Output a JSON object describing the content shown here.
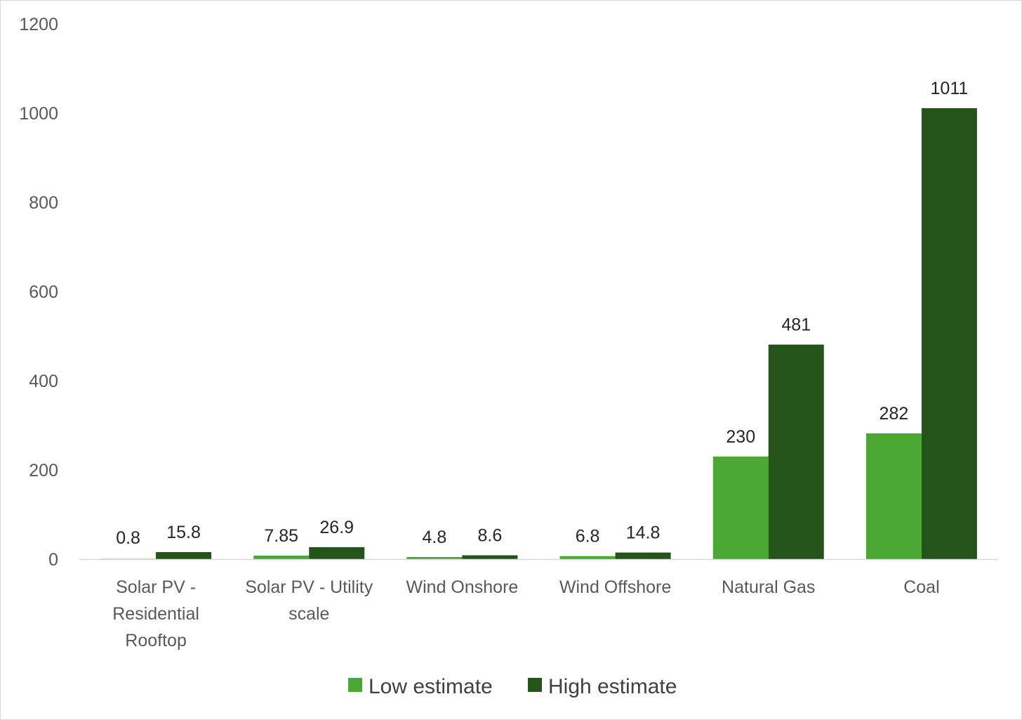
{
  "chart_data": {
    "type": "bar",
    "categories": [
      [
        "Solar PV -",
        "Residential",
        "Rooftop"
      ],
      [
        "Solar PV - Utility",
        "scale"
      ],
      [
        "Wind Onshore"
      ],
      [
        "Wind Offshore"
      ],
      [
        "Natural Gas"
      ],
      [
        "Coal"
      ]
    ],
    "series": [
      {
        "name": "Low estimate",
        "values": [
          0.8,
          7.85,
          4.8,
          6.8,
          230,
          282
        ],
        "labels": [
          "0.8",
          "7.85",
          "4.8",
          "6.8",
          "230",
          "282"
        ],
        "color": "#4aa832"
      },
      {
        "name": "High estimate",
        "values": [
          15.8,
          26.9,
          8.6,
          14.8,
          481,
          1011
        ],
        "labels": [
          "15.8",
          "26.9",
          "8.6",
          "14.8",
          "481",
          "1011"
        ],
        "color": "#245419"
      }
    ],
    "ylim": [
      0,
      1200
    ],
    "yticks": [
      "0",
      "200",
      "400",
      "600",
      "800",
      "1000",
      "1200"
    ],
    "title": "",
    "xlabel": "",
    "ylabel": "",
    "grid": false,
    "legend": "bottom",
    "colors": {
      "axis": "#d9d9d9",
      "tick_text": "#595959",
      "label_text": "#262626",
      "legend_text": "#404040"
    }
  }
}
